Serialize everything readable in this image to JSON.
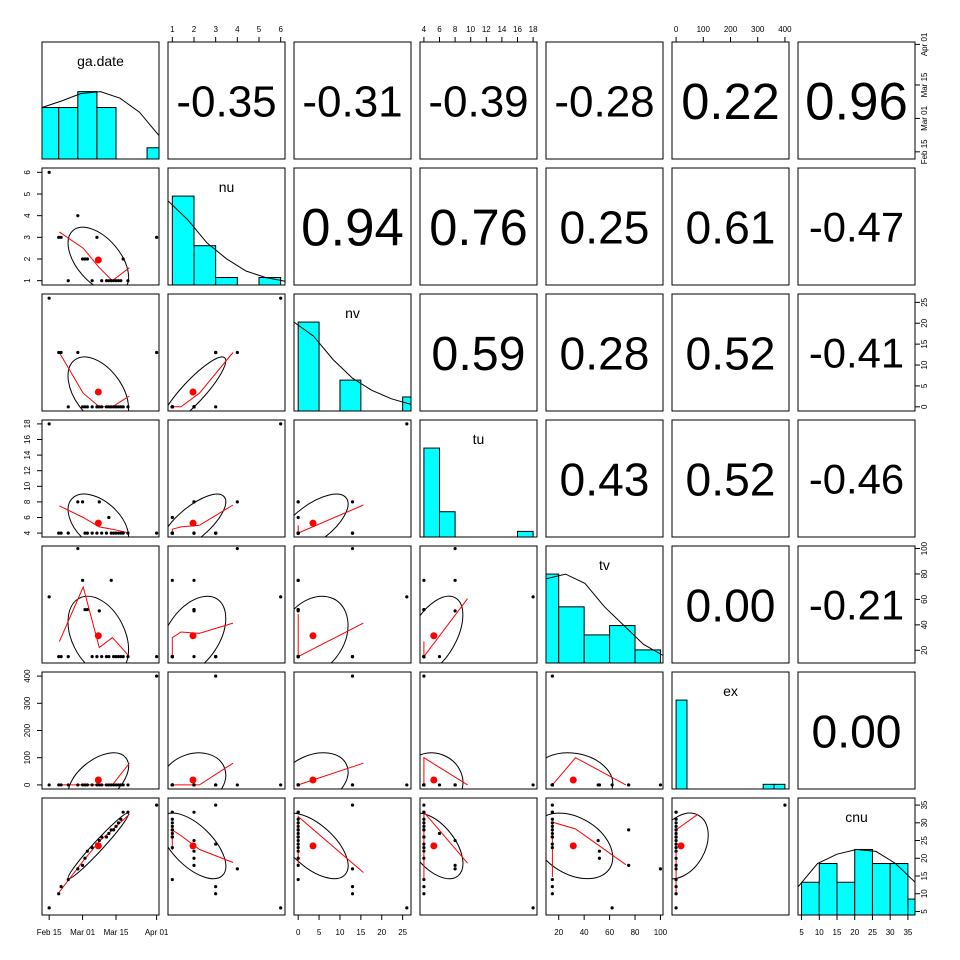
{
  "chart_data": {
    "type": "scatter-matrix",
    "variables": [
      "ga.date",
      "nu",
      "nv",
      "tu",
      "tv",
      "ex",
      "cnu"
    ],
    "correlations": [
      [
        null,
        "-0.35",
        "-0.31",
        "-0.39",
        "-0.28",
        "0.22",
        "0.96"
      ],
      [
        null,
        null,
        "0.94",
        "0.76",
        "0.25",
        "0.61",
        "-0.47"
      ],
      [
        null,
        null,
        null,
        "0.59",
        "0.28",
        "0.52",
        "-0.41"
      ],
      [
        null,
        null,
        null,
        null,
        "0.43",
        "0.52",
        "-0.46"
      ],
      [
        null,
        null,
        null,
        null,
        null,
        "0.00",
        "-0.21"
      ],
      [
        null,
        null,
        null,
        null,
        null,
        null,
        "0.00"
      ]
    ],
    "correlation_sizes": [
      [
        null,
        1.0,
        1.0,
        1.0,
        1.0,
        1.15,
        1.2
      ],
      [
        null,
        null,
        1.2,
        1.15,
        1.05,
        1.05,
        0.95
      ],
      [
        null,
        null,
        null,
        1.1,
        1.05,
        1.05,
        0.95
      ],
      [
        null,
        null,
        null,
        null,
        1.05,
        1.05,
        0.95
      ],
      [
        null,
        null,
        null,
        null,
        null,
        1.05,
        0.95
      ],
      [
        null,
        null,
        null,
        null,
        null,
        null,
        1.05
      ]
    ],
    "axes": {
      "ga.date": {
        "ticks": [
          "Feb 15",
          "Mar 01",
          "Mar 15",
          "Apr 01"
        ],
        "positions": [
          0,
          14,
          28,
          45
        ],
        "range": [
          -3,
          46
        ]
      },
      "nu": {
        "ticks": [
          "1",
          "2",
          "3",
          "4",
          "5",
          "6"
        ],
        "positions": [
          1,
          2,
          3,
          4,
          5,
          6
        ],
        "range": [
          0.8,
          6.2
        ]
      },
      "nv": {
        "ticks": [
          "0",
          "5",
          "10",
          "15",
          "20",
          "25"
        ],
        "positions": [
          0,
          5,
          10,
          15,
          20,
          25
        ],
        "range": [
          -1,
          27
        ]
      },
      "tu": {
        "ticks": [
          "4",
          "6",
          "8",
          "10",
          "12",
          "14",
          "16",
          "18"
        ],
        "positions": [
          4,
          6,
          8,
          10,
          12,
          14,
          16,
          18
        ],
        "range": [
          3.5,
          18.5
        ]
      },
      "tv": {
        "ticks": [
          "20",
          "40",
          "60",
          "80",
          "100"
        ],
        "positions": [
          20,
          40,
          60,
          80,
          100
        ],
        "range": [
          10,
          102
        ]
      },
      "ex": {
        "ticks": [
          "0",
          "100",
          "200",
          "300",
          "400"
        ],
        "positions": [
          0,
          100,
          200,
          300,
          400
        ],
        "range": [
          -15,
          415
        ]
      },
      "cnu": {
        "ticks": [
          "5",
          "10",
          "15",
          "20",
          "25",
          "30",
          "35"
        ],
        "positions": [
          5,
          10,
          15,
          20,
          25,
          30,
          35
        ],
        "range": [
          4,
          37
        ]
      }
    },
    "histograms": {
      "ga.date": {
        "breaks": [
          -3,
          4,
          12,
          20,
          28,
          41,
          46
        ],
        "heights": [
          0.55,
          0.55,
          0.72,
          0.55,
          0.0,
          0.12
        ],
        "curve": [
          0.55,
          0.62,
          0.7,
          0.72,
          0.65,
          0.5,
          0.25
        ]
      },
      "nu": {
        "breaks": [
          1,
          2,
          3,
          4,
          5,
          6
        ],
        "heights": [
          0.95,
          0.42,
          0.08,
          0.0,
          0.08
        ],
        "curve": [
          0.9,
          0.7,
          0.45,
          0.28,
          0.15,
          0.08,
          0.04
        ]
      },
      "nv": {
        "breaks": [
          0,
          5,
          10,
          15,
          20,
          25,
          27
        ],
        "heights": [
          0.95,
          0.0,
          0.33,
          0.0,
          0.0,
          0.15
        ],
        "curve": [
          0.95,
          0.8,
          0.55,
          0.35,
          0.22,
          0.13,
          0.07
        ]
      },
      "tu": {
        "breaks": [
          4,
          6,
          8,
          10,
          12,
          14,
          16,
          18
        ],
        "heights": [
          0.95,
          0.27,
          0.0,
          0.0,
          0.0,
          0.0,
          0.06
        ],
        "curve": [
          0.0,
          0.0,
          0.0,
          0.0,
          0.0,
          0.0,
          0.0
        ]
      },
      "tv": {
        "breaks": [
          10,
          20,
          40,
          60,
          80,
          100
        ],
        "heights": [
          0.95,
          0.6,
          0.3,
          0.4,
          0.14
        ],
        "curve": [
          0.9,
          0.95,
          0.85,
          0.6,
          0.4,
          0.2,
          0.08
        ]
      },
      "ex": {
        "breaks": [
          0,
          40,
          80,
          120,
          160,
          200,
          240,
          280,
          320,
          360,
          400
        ],
        "heights": [
          0.95,
          0,
          0,
          0,
          0,
          0,
          0,
          0,
          0.05,
          0.05
        ],
        "curve": [
          0.0,
          0.0,
          0.0,
          0.0,
          0.0,
          0.0,
          0.0
        ]
      },
      "cnu": {
        "breaks": [
          5,
          10,
          15,
          20,
          25,
          30,
          35,
          37
        ],
        "heights": [
          0.35,
          0.55,
          0.35,
          0.7,
          0.55,
          0.55,
          0.17
        ],
        "curve": [
          0.3,
          0.55,
          0.65,
          0.7,
          0.68,
          0.55,
          0.35
        ]
      }
    },
    "data": {
      "ga.date": [
        0,
        4,
        5,
        8,
        12,
        14,
        15,
        16,
        18,
        20,
        21,
        22,
        24,
        25,
        26,
        27,
        28,
        29,
        30,
        31,
        33,
        45
      ],
      "nu": [
        6,
        3,
        3,
        1,
        4,
        2,
        2,
        2,
        1,
        3,
        2,
        1,
        1,
        1,
        1,
        1,
        1,
        1,
        1,
        2,
        1,
        3
      ],
      "nv": [
        26,
        13,
        13,
        0,
        13,
        0,
        0,
        0,
        0,
        0,
        0,
        0,
        0,
        0,
        0,
        0,
        0,
        0,
        0,
        0,
        0,
        13
      ],
      "tu": [
        18,
        4,
        4,
        4,
        8,
        8,
        4,
        4,
        4,
        4,
        8,
        4,
        4,
        6,
        4,
        4,
        4,
        4,
        4,
        4,
        4,
        4
      ],
      "tv": [
        62,
        15,
        15,
        15,
        100,
        75,
        52,
        52,
        15,
        15,
        51,
        15,
        15,
        15,
        75,
        15,
        15,
        15,
        15,
        15,
        15,
        15
      ],
      "ex": [
        0,
        0,
        0,
        0,
        0,
        0,
        0,
        0,
        0,
        0,
        0,
        0,
        0,
        0,
        0,
        0,
        0,
        0,
        0,
        0,
        0,
        400
      ],
      "cnu": [
        6,
        10,
        12,
        14,
        17,
        18,
        20,
        22,
        23,
        24,
        25,
        26,
        26,
        27,
        28,
        28,
        29,
        30,
        31,
        33,
        33,
        35
      ]
    }
  }
}
